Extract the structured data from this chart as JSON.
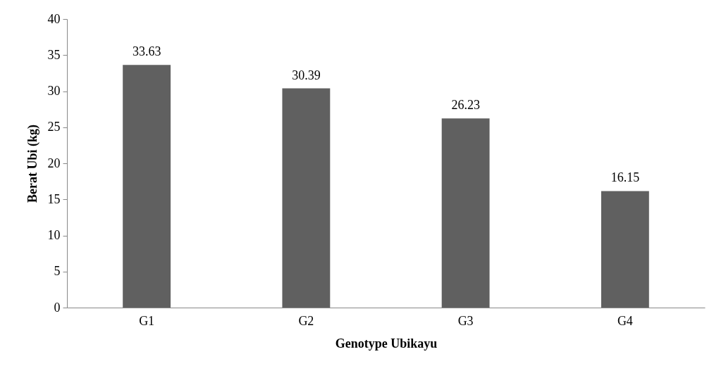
{
  "chart_data": {
    "type": "bar",
    "xlabel": "Genotype Ubikayu",
    "ylabel": "Berat Ubi (kg)",
    "categories": [
      "G1",
      "G2",
      "G3",
      "G4"
    ],
    "values": [
      33.63,
      30.39,
      26.23,
      16.15
    ],
    "color": "#606060",
    "ylim": [
      0,
      40
    ],
    "yticks": [
      0,
      5,
      10,
      15,
      20,
      25,
      30,
      35,
      40
    ],
    "grid": false,
    "data_labels": true
  }
}
